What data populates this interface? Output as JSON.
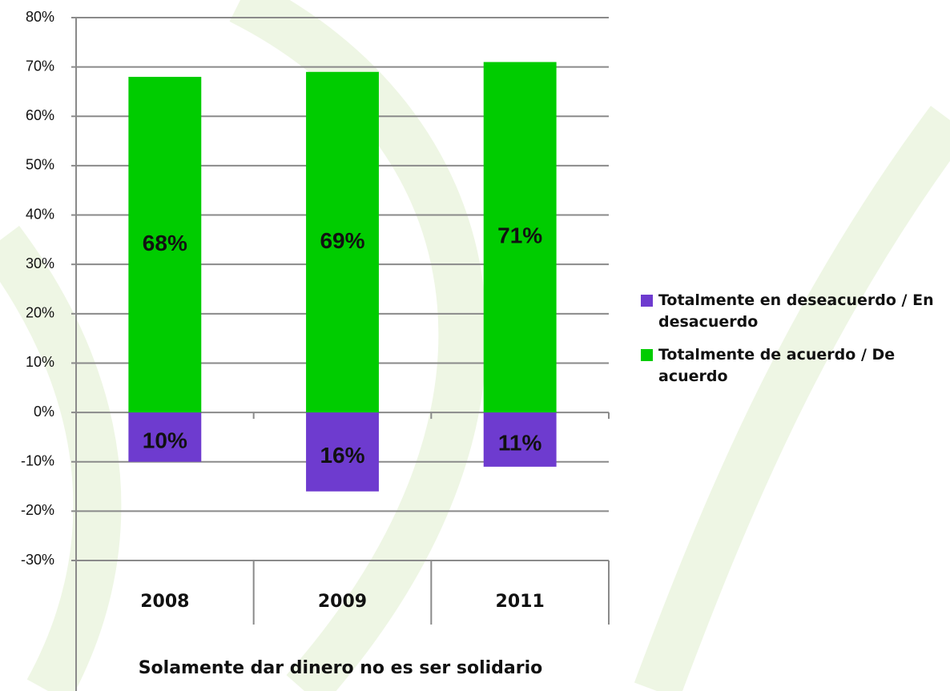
{
  "chart_data": {
    "type": "stacked_bar",
    "xlabel": "Solamente dar dinero no es ser solidario",
    "categories": [
      "2008",
      "2009",
      "2011"
    ],
    "series": [
      {
        "name": "Totalmente en deseacuerdo / En desacuerdo",
        "color": "#6e3bcf",
        "values": [
          -10,
          -16,
          -11
        ],
        "value_labels": [
          "10%",
          "16%",
          "11%"
        ]
      },
      {
        "name": "Totalmente de acuerdo / De acuerdo",
        "color": "#00cc00",
        "values": [
          68,
          69,
          71
        ],
        "value_labels": [
          "68%",
          "69%",
          "71%"
        ]
      }
    ],
    "ylim": [
      -30,
      80
    ],
    "yticks": [
      {
        "value": -30,
        "label": "-30%"
      },
      {
        "value": -20,
        "label": "-20%"
      },
      {
        "value": -10,
        "label": "-10%"
      },
      {
        "value": 0,
        "label": "0%"
      },
      {
        "value": 10,
        "label": "10%"
      },
      {
        "value": 20,
        "label": "20%"
      },
      {
        "value": 30,
        "label": "30%"
      },
      {
        "value": 40,
        "label": "40%"
      },
      {
        "value": 50,
        "label": "50%"
      },
      {
        "value": 60,
        "label": "60%"
      },
      {
        "value": 70,
        "label": "70%"
      },
      {
        "value": 80,
        "label": "80%"
      }
    ],
    "grid": true
  }
}
